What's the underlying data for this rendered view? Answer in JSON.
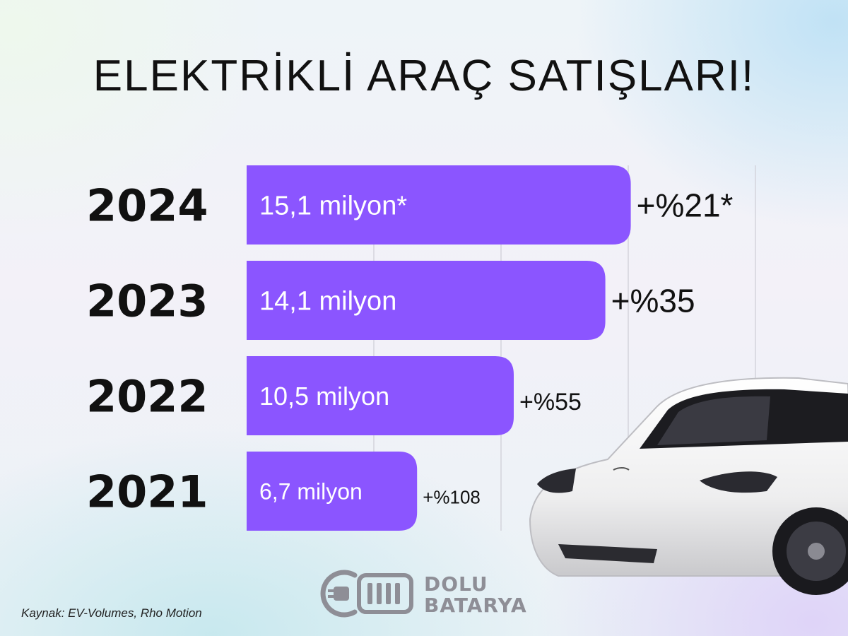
{
  "header": {
    "title": "ELEKTRİKLİ ARAÇ SATIŞLARI!"
  },
  "chart_data": {
    "type": "bar",
    "orientation": "horizontal",
    "categories": [
      "2024",
      "2023",
      "2022",
      "2021"
    ],
    "values": [
      15.1,
      14.1,
      10.5,
      6.7
    ],
    "value_labels": [
      "15,1 milyon*",
      "14,1 milyon",
      "10,5 milyon",
      "6,7 milyon"
    ],
    "growth_labels": [
      "+%21*",
      "+%35",
      "+%55",
      "+%108"
    ],
    "title": "ELEKTRİKLİ ARAÇ SATIŞLARI!",
    "xlabel": "",
    "ylabel": "",
    "xlim": [
      0,
      20
    ],
    "grid": true,
    "bar_color": "#8b55ff"
  },
  "footer": {
    "source": "Kaynak: EV-Volumes, Rho Motion",
    "brand_line1": "DOLU",
    "brand_line2": "BATARYA"
  },
  "colors": {
    "bar": "#8b55ff",
    "text": "#111111",
    "logo": "#8e8e96"
  },
  "icons": {
    "logo": "plug-battery-icon",
    "illustration": "white-suv-car-icon"
  }
}
